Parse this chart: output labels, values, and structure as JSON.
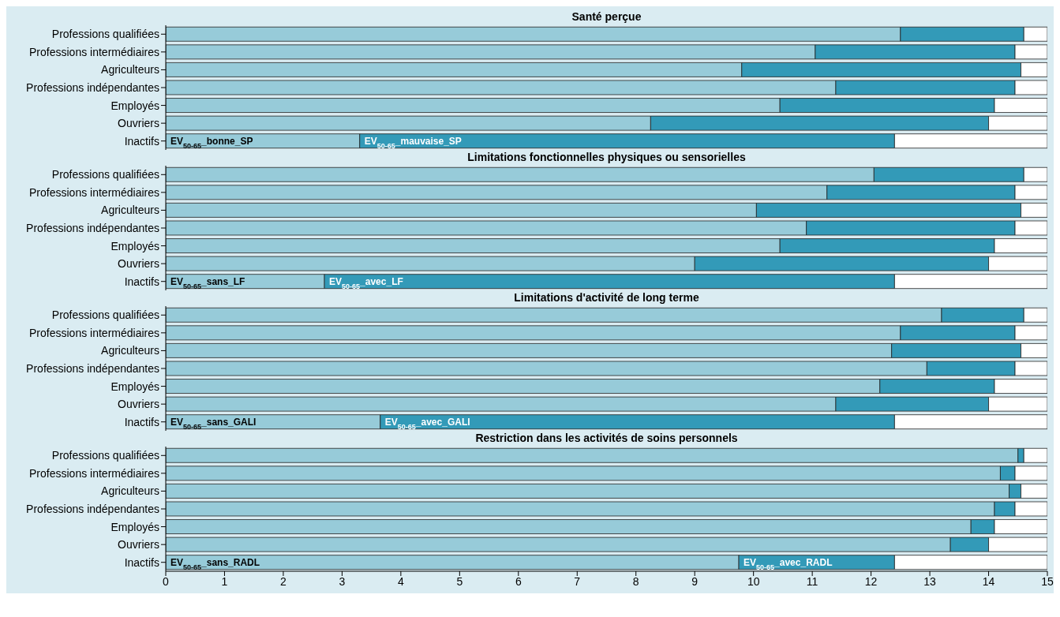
{
  "chart_data": [
    {
      "type": "bar",
      "title": "Santé perçue",
      "orientation": "horizontal",
      "stacked": true,
      "tick_labels": "y",
      "categories": [
        "Professions qualifiées",
        "Professions intermédiaires",
        "Agriculteurs",
        "Professions indépendantes",
        "Employés",
        "Ouvriers",
        "Inactifs"
      ],
      "series": [
        {
          "color": "#97cbd9",
          "values": [
            12.5,
            11.05,
            9.8,
            11.4,
            10.45,
            8.25,
            3.3
          ]
        },
        {
          "color": "#339ab8",
          "values": [
            2.1,
            3.4,
            4.75,
            3.05,
            3.65,
            5.75,
            9.1
          ]
        },
        {
          "color": "#ffffff",
          "values": [
            0.4,
            0.55,
            0.45,
            0.55,
            0.9,
            1.0,
            2.6
          ]
        }
      ],
      "xlim": [
        0,
        15
      ],
      "xticks": [
        0,
        1,
        2,
        3,
        4,
        5,
        6,
        7,
        8,
        9,
        10,
        11,
        12,
        13,
        14,
        15
      ],
      "annotations": [
        {
          "text": "EV$_{50-65}$_bonne_SP",
          "x": 0,
          "y": "Inactifs"
        },
        {
          "text": "EV$_{50-65}$_mauvaise_SP",
          "x": 3.3,
          "y": "Inactifs"
        }
      ]
    },
    {
      "type": "bar",
      "title": "Limitations fonctionnelles physiques ou sensorielles",
      "orientation": "horizontal",
      "stacked": true,
      "tick_labels": "y",
      "categories": [
        "Professions qualifiées",
        "Professions intermédiaires",
        "Agriculteurs",
        "Professions indépendantes",
        "Employés",
        "Ouvriers",
        "Inactifs"
      ],
      "series": [
        {
          "color": "#97cbd9",
          "values": [
            12.05,
            11.25,
            10.05,
            10.9,
            10.45,
            9.0,
            2.7
          ]
        },
        {
          "color": "#339ab8",
          "values": [
            2.55,
            3.2,
            4.5,
            3.55,
            3.65,
            5.0,
            9.7
          ]
        },
        {
          "color": "#ffffff",
          "values": [
            0.4,
            0.55,
            0.45,
            0.55,
            0.9,
            1.0,
            2.6
          ]
        }
      ],
      "xlim": [
        0,
        15
      ],
      "xticks": [
        0,
        1,
        2,
        3,
        4,
        5,
        6,
        7,
        8,
        9,
        10,
        11,
        12,
        13,
        14,
        15
      ],
      "annotations": [
        {
          "text": "EV$_{50-65}$_sans_LF",
          "x": 0,
          "y": "Inactifs"
        },
        {
          "text": "EV$_{50-65}$_avec_LF",
          "x": 2.7,
          "y": "Inactifs"
        }
      ]
    },
    {
      "type": "bar",
      "title": "Limitations d'activité de long terme",
      "orientation": "horizontal",
      "stacked": true,
      "tick_labels": "y",
      "categories": [
        "Professions qualifiées",
        "Professions intermédiaires",
        "Agriculteurs",
        "Professions indépendantes",
        "Employés",
        "Ouvriers",
        "Inactifs"
      ],
      "series": [
        {
          "color": "#97cbd9",
          "values": [
            13.2,
            12.5,
            12.35,
            12.95,
            12.15,
            11.4,
            3.65
          ]
        },
        {
          "color": "#339ab8",
          "values": [
            1.4,
            1.95,
            2.2,
            1.5,
            1.95,
            2.6,
            8.75
          ]
        },
        {
          "color": "#ffffff",
          "values": [
            0.4,
            0.55,
            0.45,
            0.55,
            0.9,
            1.0,
            2.6
          ]
        }
      ],
      "xlim": [
        0,
        15
      ],
      "xticks": [
        0,
        1,
        2,
        3,
        4,
        5,
        6,
        7,
        8,
        9,
        10,
        11,
        12,
        13,
        14,
        15
      ],
      "annotations": [
        {
          "text": "EV$_{50-65}$_sans_GALI",
          "x": 0,
          "y": "Inactifs"
        },
        {
          "text": "EV$_{50-65}$_avec_GALI",
          "x": 3.65,
          "y": "Inactifs"
        }
      ]
    },
    {
      "type": "bar",
      "title": "Restriction dans les activités de soins personnels",
      "orientation": "horizontal",
      "stacked": true,
      "categories": [
        "Professions qualifiées",
        "Professions intermédiaires",
        "Agriculteurs",
        "Professions indépendantes",
        "Employés",
        "Ouvriers",
        "Inactifs"
      ],
      "series": [
        {
          "color": "#97cbd9",
          "values": [
            14.5,
            14.2,
            14.35,
            14.1,
            13.7,
            13.35,
            9.75
          ]
        },
        {
          "color": "#339ab8",
          "values": [
            0.1,
            0.25,
            0.2,
            0.35,
            0.4,
            0.65,
            2.65
          ]
        },
        {
          "color": "#ffffff",
          "values": [
            0.4,
            0.55,
            0.45,
            0.55,
            0.9,
            1.0,
            2.6
          ]
        }
      ],
      "xlim": [
        0,
        15
      ],
      "xticks": [
        0,
        1,
        2,
        3,
        4,
        5,
        6,
        7,
        8,
        9,
        10,
        11,
        12,
        13,
        14,
        15
      ],
      "annotations": [
        {
          "text": "EV$_{50-65}$_sans_RADL",
          "x": 0,
          "y": "Inactifs"
        },
        {
          "text": "EV$_{50-65}$_avec_RADL",
          "x": 9.75,
          "y": "Inactifs"
        }
      ]
    }
  ]
}
